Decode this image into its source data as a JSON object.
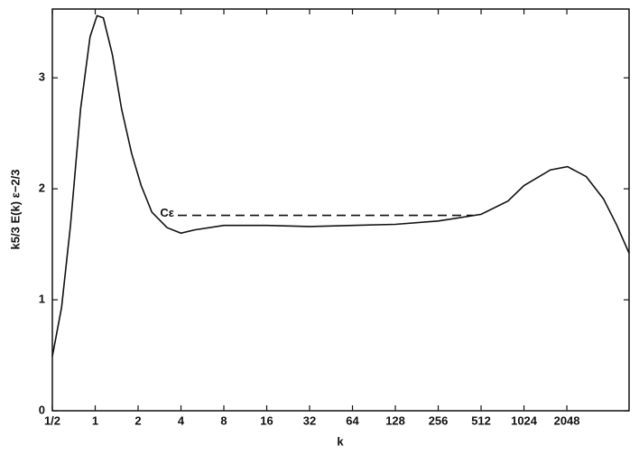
{
  "chart_data": {
    "type": "line",
    "xlabel": "k",
    "ylabel": "k5/3 E(k) ε−2/3",
    "xscale": "log2",
    "xlim": [
      0.5,
      5600
    ],
    "ylim": [
      0,
      3.62
    ],
    "xticks": [
      {
        "value": 0.5,
        "label": "1/2"
      },
      1,
      2,
      4,
      8,
      16,
      32,
      64,
      128,
      256,
      512,
      1024,
      2048
    ],
    "yticks": [
      0,
      1,
      2,
      3
    ],
    "grid": false,
    "series": [
      {
        "color": "#111111",
        "style": "solid",
        "x": [
          0.5,
          0.58,
          0.67,
          0.79,
          0.92,
          1.03,
          1.14,
          1.32,
          1.53,
          1.8,
          2.1,
          2.5,
          3.2,
          4,
          5,
          8,
          16,
          32,
          64,
          128,
          256,
          512,
          790,
          1024,
          1570,
          2070,
          2800,
          3700,
          4600,
          5600
        ],
        "values": [
          0.49,
          0.93,
          1.67,
          2.72,
          3.37,
          3.56,
          3.54,
          3.21,
          2.72,
          2.32,
          2.03,
          1.79,
          1.65,
          1.6,
          1.63,
          1.67,
          1.67,
          1.66,
          1.67,
          1.68,
          1.71,
          1.77,
          1.89,
          2.03,
          2.17,
          2.2,
          2.11,
          1.91,
          1.67,
          1.42
        ]
      },
      {
        "name": "Cε",
        "color": "#111111",
        "style": "dashed",
        "x": [
          3.8,
          450
        ],
        "values": [
          1.76,
          1.76
        ]
      }
    ]
  }
}
